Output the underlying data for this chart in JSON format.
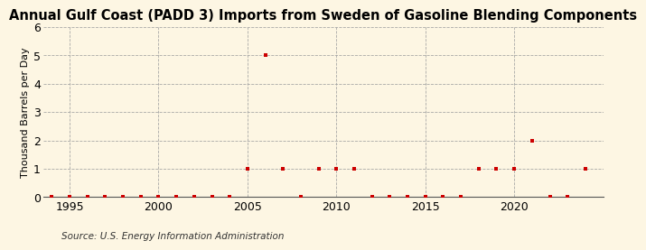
{
  "title": "Annual Gulf Coast (PADD 3) Imports from Sweden of Gasoline Blending Components",
  "ylabel": "Thousand Barrels per Day",
  "source": "Source: U.S. Energy Information Administration",
  "background_color": "#fdf6e3",
  "marker_color": "#cc0000",
  "grid_color": "#a0a0a0",
  "years": [
    1994,
    1995,
    1996,
    1997,
    1998,
    1999,
    2000,
    2001,
    2002,
    2003,
    2004,
    2005,
    2006,
    2007,
    2008,
    2009,
    2010,
    2011,
    2012,
    2013,
    2014,
    2015,
    2016,
    2017,
    2018,
    2019,
    2020,
    2021,
    2022,
    2023,
    2024
  ],
  "values": [
    0,
    0,
    0,
    0,
    0,
    0,
    0,
    0,
    0,
    0,
    0,
    1,
    5,
    1,
    0,
    1,
    1,
    1,
    0,
    0,
    0,
    0,
    0,
    0,
    1,
    1,
    1,
    2,
    0,
    0,
    1
  ],
  "xlim": [
    1993.5,
    2025
  ],
  "ylim": [
    0,
    6
  ],
  "yticks": [
    0,
    1,
    2,
    3,
    4,
    5,
    6
  ],
  "xticks": [
    1995,
    2000,
    2005,
    2010,
    2015,
    2020
  ],
  "title_fontsize": 10.5,
  "ylabel_fontsize": 8,
  "tick_fontsize": 9,
  "source_fontsize": 7.5
}
